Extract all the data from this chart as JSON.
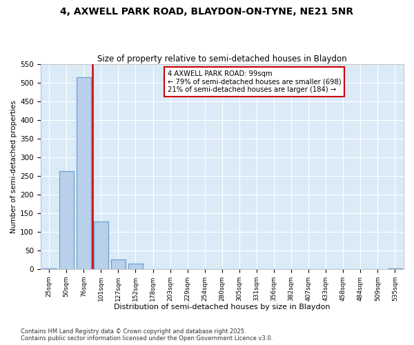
{
  "title_line1": "4, AXWELL PARK ROAD, BLAYDON-ON-TYNE, NE21 5NR",
  "title_line2": "Size of property relative to semi-detached houses in Blaydon",
  "xlabel": "Distribution of semi-detached houses by size in Blaydon",
  "ylabel": "Number of semi-detached properties",
  "categories": [
    "25sqm",
    "50sqm",
    "76sqm",
    "101sqm",
    "127sqm",
    "152sqm",
    "178sqm",
    "203sqm",
    "229sqm",
    "254sqm",
    "280sqm",
    "305sqm",
    "331sqm",
    "356sqm",
    "382sqm",
    "407sqm",
    "433sqm",
    "458sqm",
    "484sqm",
    "509sqm",
    "535sqm"
  ],
  "values": [
    2,
    262,
    516,
    127,
    25,
    14,
    0,
    0,
    0,
    0,
    0,
    0,
    0,
    0,
    0,
    0,
    0,
    0,
    0,
    0,
    2
  ],
  "bar_color": "#b8d0ea",
  "bar_edge_color": "#6699cc",
  "red_line_index": 3,
  "annotation_title": "4 AXWELL PARK ROAD: 99sqm",
  "annotation_line1": "← 79% of semi-detached houses are smaller (698)",
  "annotation_line2": "21% of semi-detached houses are larger (184) →",
  "red_line_color": "#cc0000",
  "annotation_box_edge_color": "#cc0000",
  "plot_bg_color": "#daeaf7",
  "fig_bg_color": "#ffffff",
  "ylim": [
    0,
    550
  ],
  "yticks": [
    0,
    50,
    100,
    150,
    200,
    250,
    300,
    350,
    400,
    450,
    500,
    550
  ],
  "footer_line1": "Contains HM Land Registry data © Crown copyright and database right 2025.",
  "footer_line2": "Contains public sector information licensed under the Open Government Licence v3.0."
}
